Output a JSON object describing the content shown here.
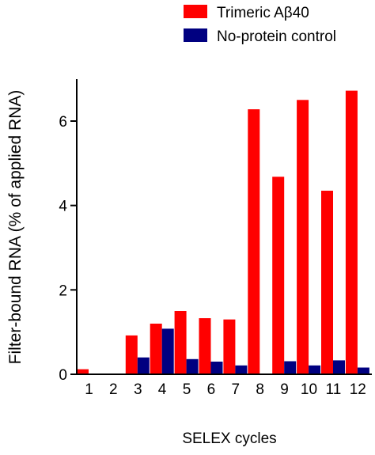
{
  "chart_data": {
    "type": "bar",
    "xlabel": "SELEX cycles",
    "ylabel": "Filter-bound RNA (% of applied RNA)",
    "categories": [
      "1",
      "2",
      "3",
      "4",
      "5",
      "6",
      "7",
      "8",
      "9",
      "10",
      "11",
      "12"
    ],
    "ylim": [
      0,
      7
    ],
    "yticks": [
      0,
      2,
      4,
      6
    ],
    "grid": false,
    "legend_position": "top-right",
    "series": [
      {
        "name": "Trimeric Aβ40",
        "color": "#ff0000",
        "values": [
          0.12,
          0,
          0.92,
          1.2,
          1.5,
          1.33,
          1.3,
          6.28,
          4.68,
          6.5,
          4.35,
          6.72
        ]
      },
      {
        "name": "No-protein control",
        "color": "#000080",
        "values": [
          0,
          0,
          0.4,
          1.08,
          0.36,
          0.3,
          0.21,
          0,
          0.31,
          0.21,
          0.33,
          0.16
        ]
      }
    ]
  }
}
